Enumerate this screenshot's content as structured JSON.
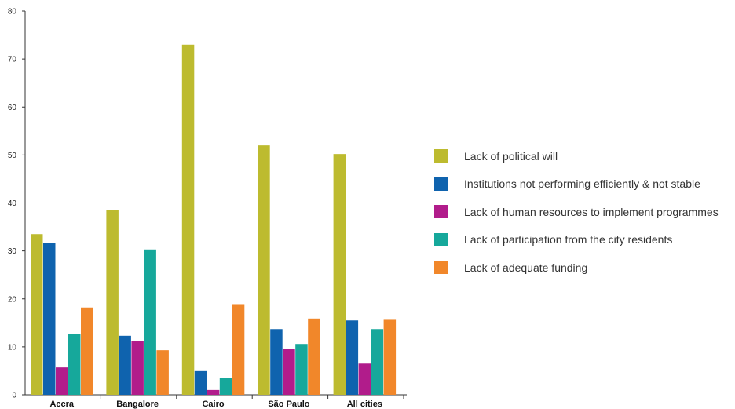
{
  "chart_data": {
    "type": "bar",
    "categories": [
      "Accra",
      "Bangalore",
      "Cairo",
      "São Paulo",
      "All cities"
    ],
    "series": [
      {
        "name": "Lack of political will",
        "color": "#bdbb2f",
        "values": [
          33.5,
          38.5,
          73,
          52,
          50.2
        ]
      },
      {
        "name": "Institutions not performing efficiently & not stable",
        "color": "#0f63ae",
        "values": [
          31.6,
          12.3,
          5.1,
          13.7,
          15.5
        ]
      },
      {
        "name": "Lack of human resources to implement programmes",
        "color": "#b11c8b",
        "values": [
          5.7,
          11.2,
          1,
          9.6,
          6.5
        ]
      },
      {
        "name": "Lack of participation from the city residents",
        "color": "#16a89b",
        "values": [
          12.7,
          30.3,
          3.5,
          10.6,
          13.7
        ]
      },
      {
        "name": "Lack of adequate funding",
        "color": "#f1872a",
        "values": [
          18.2,
          9.3,
          18.9,
          15.9,
          15.8
        ]
      }
    ],
    "ylim": [
      0,
      80
    ],
    "yticks": [
      0,
      10,
      20,
      30,
      40,
      50,
      60,
      70,
      80
    ],
    "grid": false,
    "legend_position": "right"
  }
}
